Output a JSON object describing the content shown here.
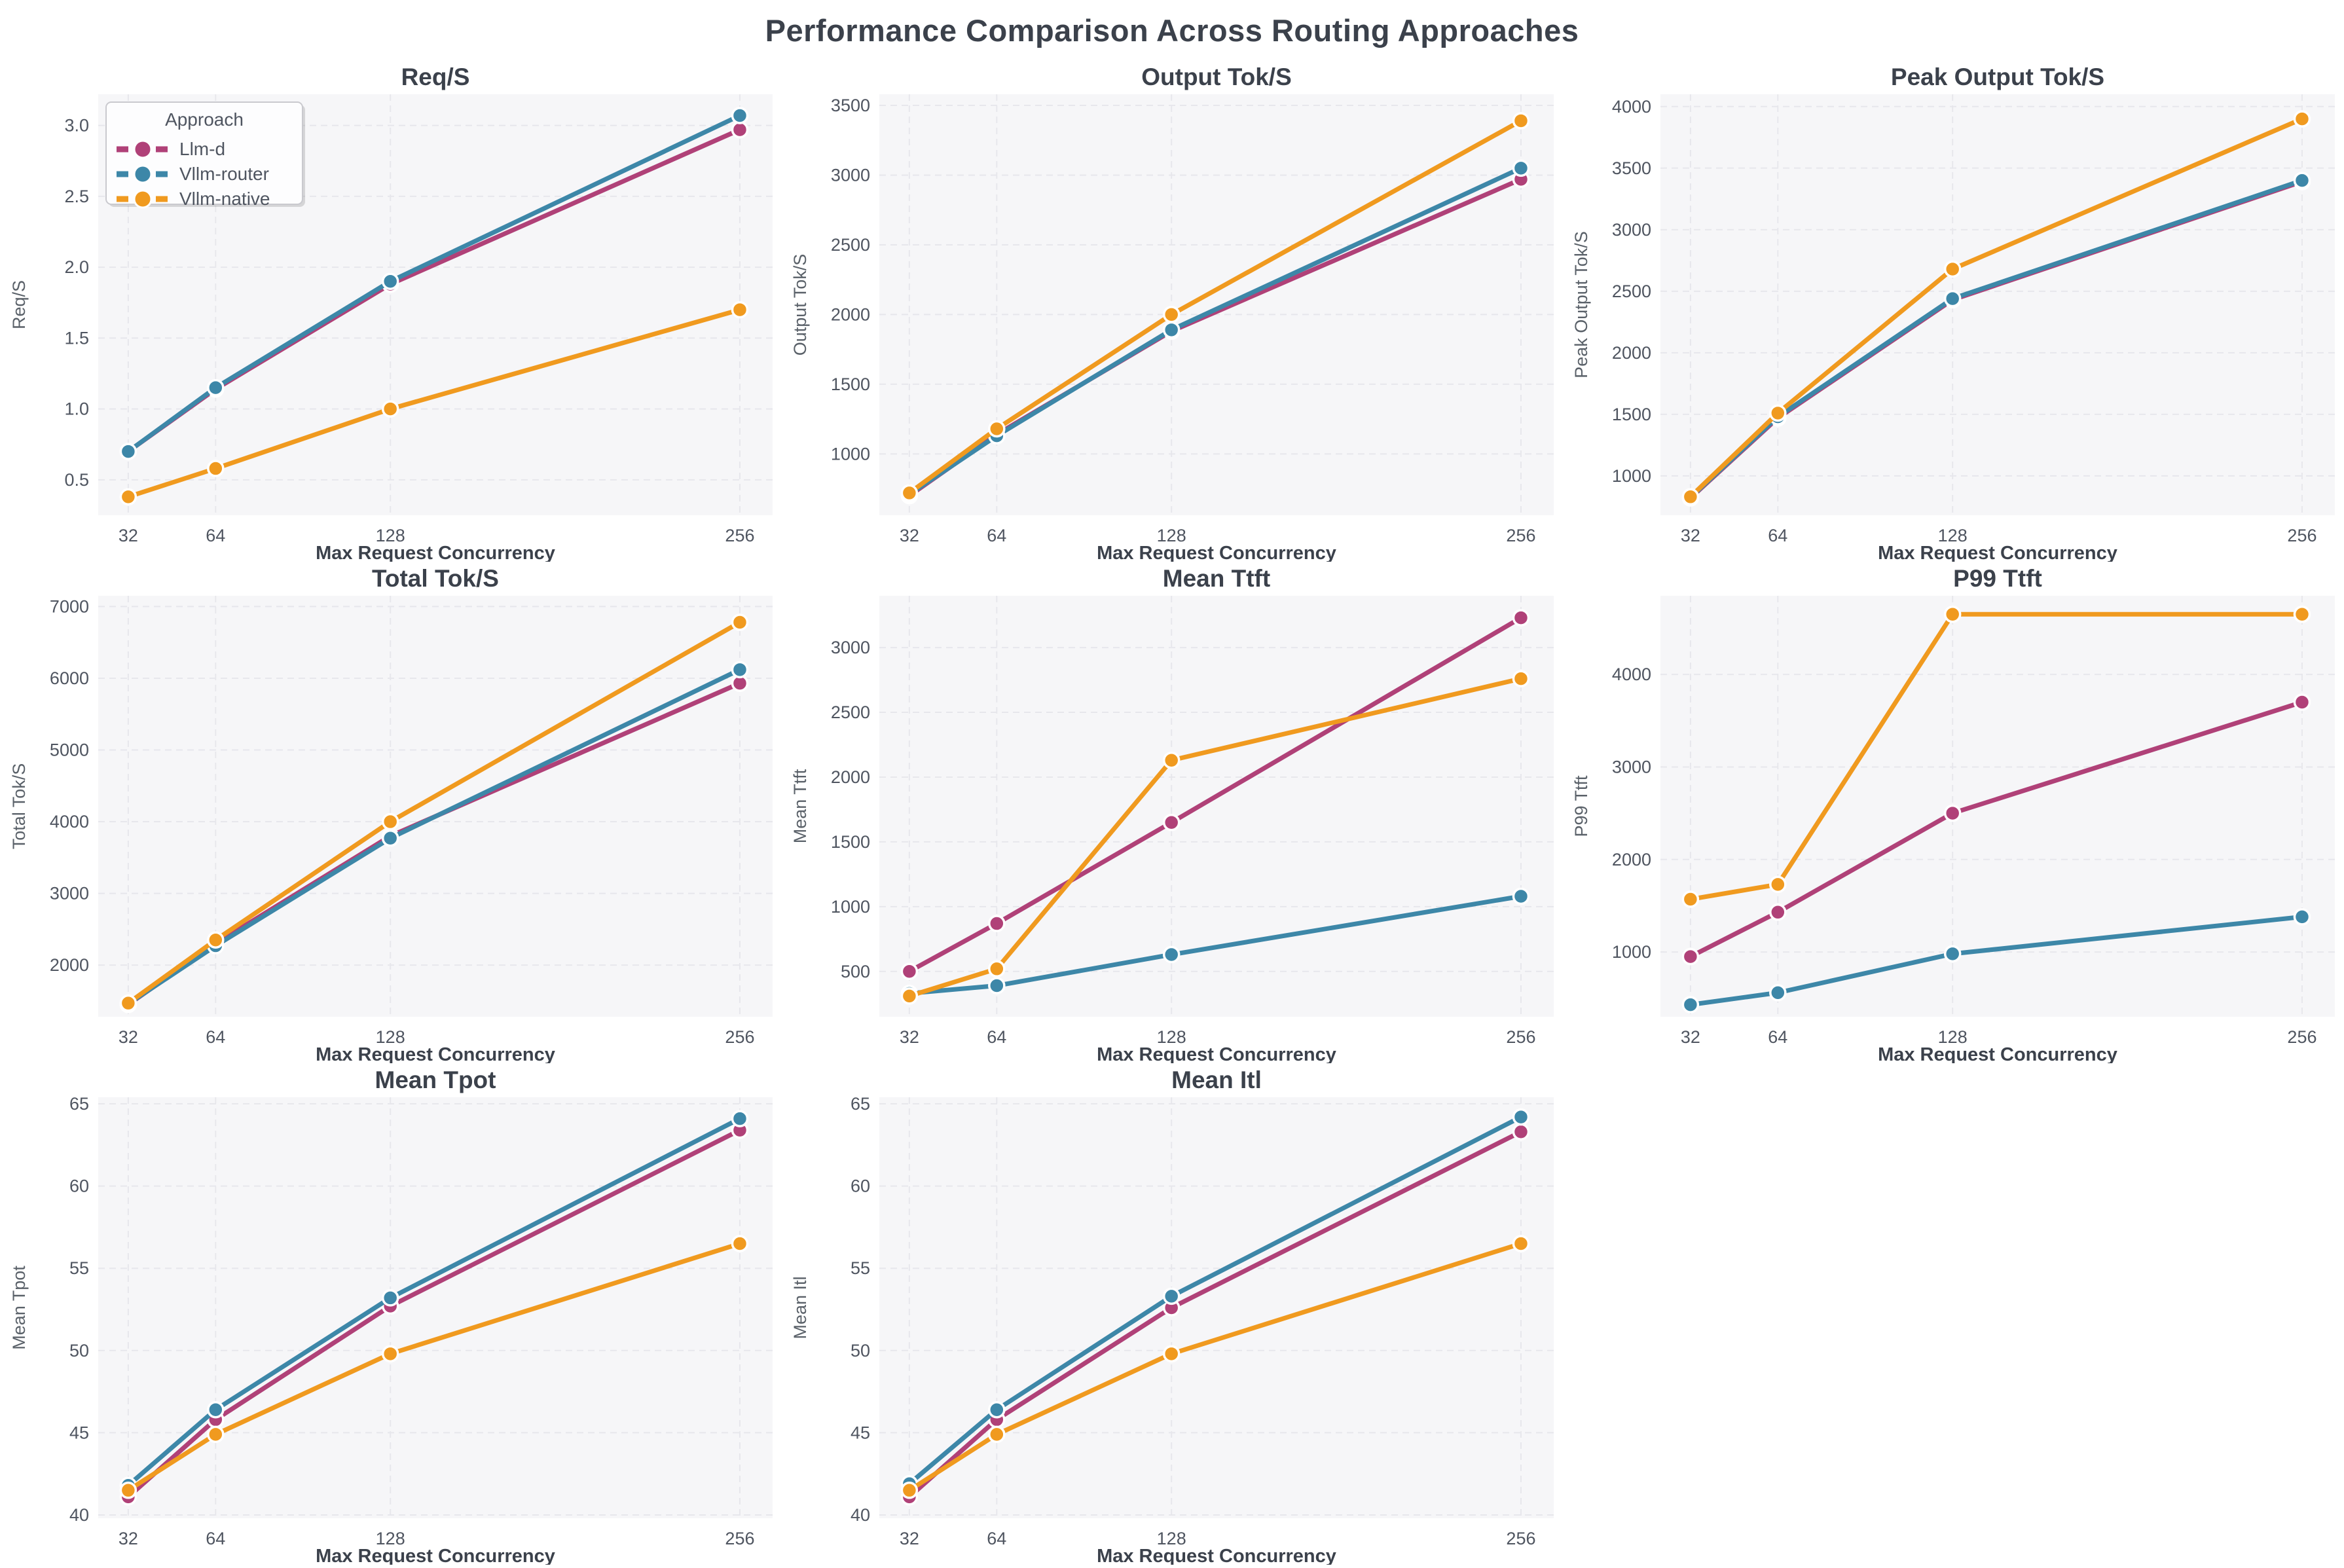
{
  "title": "Performance Comparison Across Routing Approaches",
  "x_axis": {
    "label": "Max Request Concurrency",
    "ticks": [
      32,
      64,
      128,
      256
    ],
    "range": [
      21,
      268
    ]
  },
  "legend": {
    "title": "Approach",
    "entries": [
      {
        "label": "Llm-d",
        "color": "#b04178"
      },
      {
        "label": "Vllm-router",
        "color": "#3d87a8"
      },
      {
        "label": "Vllm-native",
        "color": "#f09a1f"
      }
    ]
  },
  "style": {
    "plot_bg": "#f6f6f8",
    "grid_color": "#e7e7ec",
    "title_color": "#3b414b",
    "tick_color": "#4f5560",
    "axis_label_color": "#5a6169"
  },
  "chart_data": [
    {
      "type": "line",
      "title": "Req/S",
      "ylabel": "Req/S",
      "show_legend": true,
      "x": [
        32,
        64,
        128,
        256
      ],
      "ylim": [
        0.25,
        3.22
      ],
      "ytick_values": [
        0.5,
        1.0,
        1.5,
        2.0,
        2.5,
        3.0
      ],
      "ytick_labels": [
        "0.5",
        "1.0",
        "1.5",
        "2.0",
        "2.5",
        "3.0"
      ],
      "series": [
        {
          "name": "Llm-d",
          "color": "#b04178",
          "values": [
            0.7,
            1.14,
            1.88,
            2.97
          ]
        },
        {
          "name": "Vllm-router",
          "color": "#3d87a8",
          "values": [
            0.7,
            1.15,
            1.9,
            3.07
          ]
        },
        {
          "name": "Vllm-native",
          "color": "#f09a1f",
          "values": [
            0.38,
            0.58,
            1.0,
            1.7
          ]
        }
      ]
    },
    {
      "type": "line",
      "title": "Output Tok/S",
      "ylabel": "Output Tok/S",
      "show_legend": false,
      "x": [
        32,
        64,
        128,
        256
      ],
      "ylim": [
        560,
        3580
      ],
      "ytick_values": [
        1000,
        1500,
        2000,
        2500,
        3000,
        3500
      ],
      "ytick_labels": [
        "1000",
        "1500",
        "2000",
        "2500",
        "3000",
        "3500"
      ],
      "series": [
        {
          "name": "Llm-d",
          "color": "#b04178",
          "values": [
            700,
            1140,
            1880,
            2970
          ]
        },
        {
          "name": "Vllm-router",
          "color": "#3d87a8",
          "values": [
            710,
            1130,
            1890,
            3050
          ]
        },
        {
          "name": "Vllm-native",
          "color": "#f09a1f",
          "values": [
            720,
            1180,
            2000,
            3390
          ]
        }
      ]
    },
    {
      "type": "line",
      "title": "Peak Output Tok/S",
      "ylabel": "Peak Output Tok/S",
      "show_legend": false,
      "x": [
        32,
        64,
        128,
        256
      ],
      "ylim": [
        680,
        4100
      ],
      "ytick_values": [
        1000,
        1500,
        2000,
        2500,
        3000,
        3500,
        4000
      ],
      "ytick_labels": [
        "1000",
        "1500",
        "2000",
        "2500",
        "3000",
        "3500",
        "4000"
      ],
      "series": [
        {
          "name": "Llm-d",
          "color": "#b04178",
          "values": [
            820,
            1470,
            2430,
            3390
          ]
        },
        {
          "name": "Vllm-router",
          "color": "#3d87a8",
          "values": [
            825,
            1480,
            2440,
            3400
          ]
        },
        {
          "name": "Vllm-native",
          "color": "#f09a1f",
          "values": [
            830,
            1510,
            2680,
            3900
          ]
        }
      ]
    },
    {
      "type": "line",
      "title": "Total Tok/S",
      "ylabel": "Total Tok/S",
      "show_legend": false,
      "x": [
        32,
        64,
        128,
        256
      ],
      "ylim": [
        1280,
        7150
      ],
      "ytick_values": [
        2000,
        3000,
        4000,
        5000,
        6000,
        7000
      ],
      "ytick_labels": [
        "2000",
        "3000",
        "4000",
        "5000",
        "6000",
        "7000"
      ],
      "series": [
        {
          "name": "Llm-d",
          "color": "#b04178",
          "values": [
            1450,
            2300,
            3800,
            5930
          ]
        },
        {
          "name": "Vllm-router",
          "color": "#3d87a8",
          "values": [
            1460,
            2270,
            3770,
            6120
          ]
        },
        {
          "name": "Vllm-native",
          "color": "#f09a1f",
          "values": [
            1470,
            2350,
            4000,
            6780
          ]
        }
      ]
    },
    {
      "type": "line",
      "title": "Mean Ttft",
      "ylabel": "Mean Ttft",
      "show_legend": false,
      "x": [
        32,
        64,
        128,
        256
      ],
      "ylim": [
        150,
        3400
      ],
      "ytick_values": [
        500,
        1000,
        1500,
        2000,
        2500,
        3000
      ],
      "ytick_labels": [
        "500",
        "1000",
        "1500",
        "2000",
        "2500",
        "3000"
      ],
      "series": [
        {
          "name": "Llm-d",
          "color": "#b04178",
          "values": [
            500,
            870,
            1650,
            3230
          ]
        },
        {
          "name": "Vllm-router",
          "color": "#3d87a8",
          "values": [
            330,
            390,
            630,
            1080
          ]
        },
        {
          "name": "Vllm-native",
          "color": "#f09a1f",
          "values": [
            310,
            520,
            2130,
            2760
          ]
        }
      ]
    },
    {
      "type": "line",
      "title": "P99 Ttft",
      "ylabel": "P99 Ttft",
      "show_legend": false,
      "x": [
        32,
        64,
        128,
        256
      ],
      "ylim": [
        300,
        4850
      ],
      "ytick_values": [
        1000,
        2000,
        3000,
        4000
      ],
      "ytick_labels": [
        "1000",
        "2000",
        "3000",
        "4000"
      ],
      "series": [
        {
          "name": "Llm-d",
          "color": "#b04178",
          "values": [
            950,
            1430,
            2500,
            3700
          ]
        },
        {
          "name": "Vllm-router",
          "color": "#3d87a8",
          "values": [
            430,
            560,
            980,
            1380
          ]
        },
        {
          "name": "Vllm-native",
          "color": "#f09a1f",
          "values": [
            1570,
            1730,
            4650,
            4650
          ]
        }
      ]
    },
    {
      "type": "line",
      "title": "Mean Tpot",
      "ylabel": "Mean Tpot",
      "show_legend": false,
      "x": [
        32,
        64,
        128,
        256
      ],
      "ylim": [
        39.8,
        65.4
      ],
      "ytick_values": [
        40,
        45,
        50,
        55,
        60,
        65
      ],
      "ytick_labels": [
        "40",
        "45",
        "50",
        "55",
        "60",
        "65"
      ],
      "series": [
        {
          "name": "Llm-d",
          "color": "#b04178",
          "values": [
            41.1,
            45.8,
            52.7,
            63.4
          ]
        },
        {
          "name": "Vllm-router",
          "color": "#3d87a8",
          "values": [
            41.8,
            46.4,
            53.2,
            64.1
          ]
        },
        {
          "name": "Vllm-native",
          "color": "#f09a1f",
          "values": [
            41.5,
            44.9,
            49.8,
            56.5
          ]
        }
      ]
    },
    {
      "type": "line",
      "title": "Mean Itl",
      "ylabel": "Mean Itl",
      "show_legend": false,
      "x": [
        32,
        64,
        128,
        256
      ],
      "ylim": [
        39.8,
        65.4
      ],
      "ytick_values": [
        40,
        45,
        50,
        55,
        60,
        65
      ],
      "ytick_labels": [
        "40",
        "45",
        "50",
        "55",
        "60",
        "65"
      ],
      "series": [
        {
          "name": "Llm-d",
          "color": "#b04178",
          "values": [
            41.1,
            45.8,
            52.6,
            63.3
          ]
        },
        {
          "name": "Vllm-router",
          "color": "#3d87a8",
          "values": [
            41.9,
            46.4,
            53.3,
            64.2
          ]
        },
        {
          "name": "Vllm-native",
          "color": "#f09a1f",
          "values": [
            41.5,
            44.9,
            49.8,
            56.5
          ]
        }
      ]
    }
  ]
}
